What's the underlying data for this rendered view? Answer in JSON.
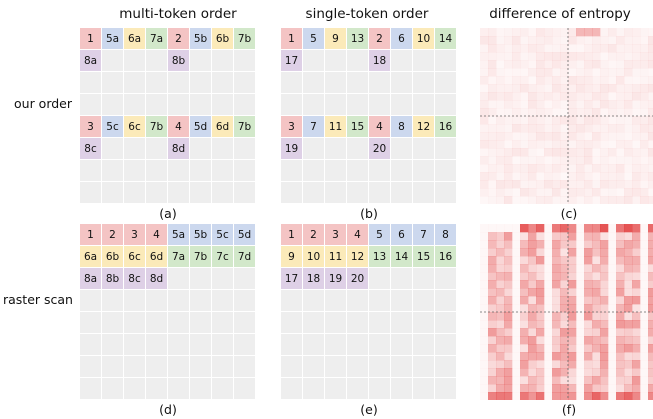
{
  "columns": {
    "multi_token": "multi-token order",
    "single_token": "single-token order",
    "entropy": "difference of entropy"
  },
  "rows": {
    "our_order": "our order",
    "raster_scan": "raster scan"
  },
  "panel_labels": [
    "(a)",
    "(b)",
    "(c)",
    "(d)",
    "(e)",
    "(f)"
  ],
  "colors": {
    "red": "#f4c4c4",
    "blue": "#ccd8ee",
    "yellow": "#fbeab9",
    "green": "#d2e8ca",
    "purple": "#ded0e6",
    "empty": "#eeeeee",
    "heat": "#e03030"
  },
  "grids": {
    "a": {
      "r0": [
        "1",
        "5a",
        "6a",
        "7a",
        "2",
        "5b",
        "6b",
        "7b"
      ],
      "r1": [
        "8a",
        "",
        "",
        "",
        "8b",
        "",
        "",
        ""
      ],
      "r4": [
        "3",
        "5c",
        "6c",
        "7b",
        "4",
        "5d",
        "6d",
        "7b"
      ],
      "r5": [
        "8c",
        "",
        "",
        "",
        "8d",
        "",
        "",
        ""
      ]
    },
    "b": {
      "r0": [
        "1",
        "5",
        "9",
        "13",
        "2",
        "6",
        "10",
        "14"
      ],
      "r1": [
        "17",
        "",
        "",
        "",
        "18",
        "",
        "",
        ""
      ],
      "r4": [
        "3",
        "7",
        "11",
        "15",
        "4",
        "8",
        "12",
        "16"
      ],
      "r5": [
        "19",
        "",
        "",
        "",
        "20",
        "",
        "",
        ""
      ]
    },
    "d": {
      "r0": [
        "1",
        "2",
        "3",
        "4",
        "5a",
        "5b",
        "5c",
        "5d"
      ],
      "r1": [
        "6a",
        "6b",
        "6c",
        "6d",
        "7a",
        "7b",
        "7c",
        "7d"
      ],
      "r2": [
        "8a",
        "8b",
        "8c",
        "8d",
        "",
        "",
        "",
        ""
      ]
    },
    "e": {
      "r0": [
        "1",
        "2",
        "3",
        "4",
        "5",
        "6",
        "7",
        "8"
      ],
      "r1": [
        "9",
        "10",
        "11",
        "12",
        "13",
        "14",
        "15",
        "16"
      ],
      "r2": [
        "17",
        "18",
        "19",
        "20",
        "",
        "",
        "",
        ""
      ]
    }
  }
}
